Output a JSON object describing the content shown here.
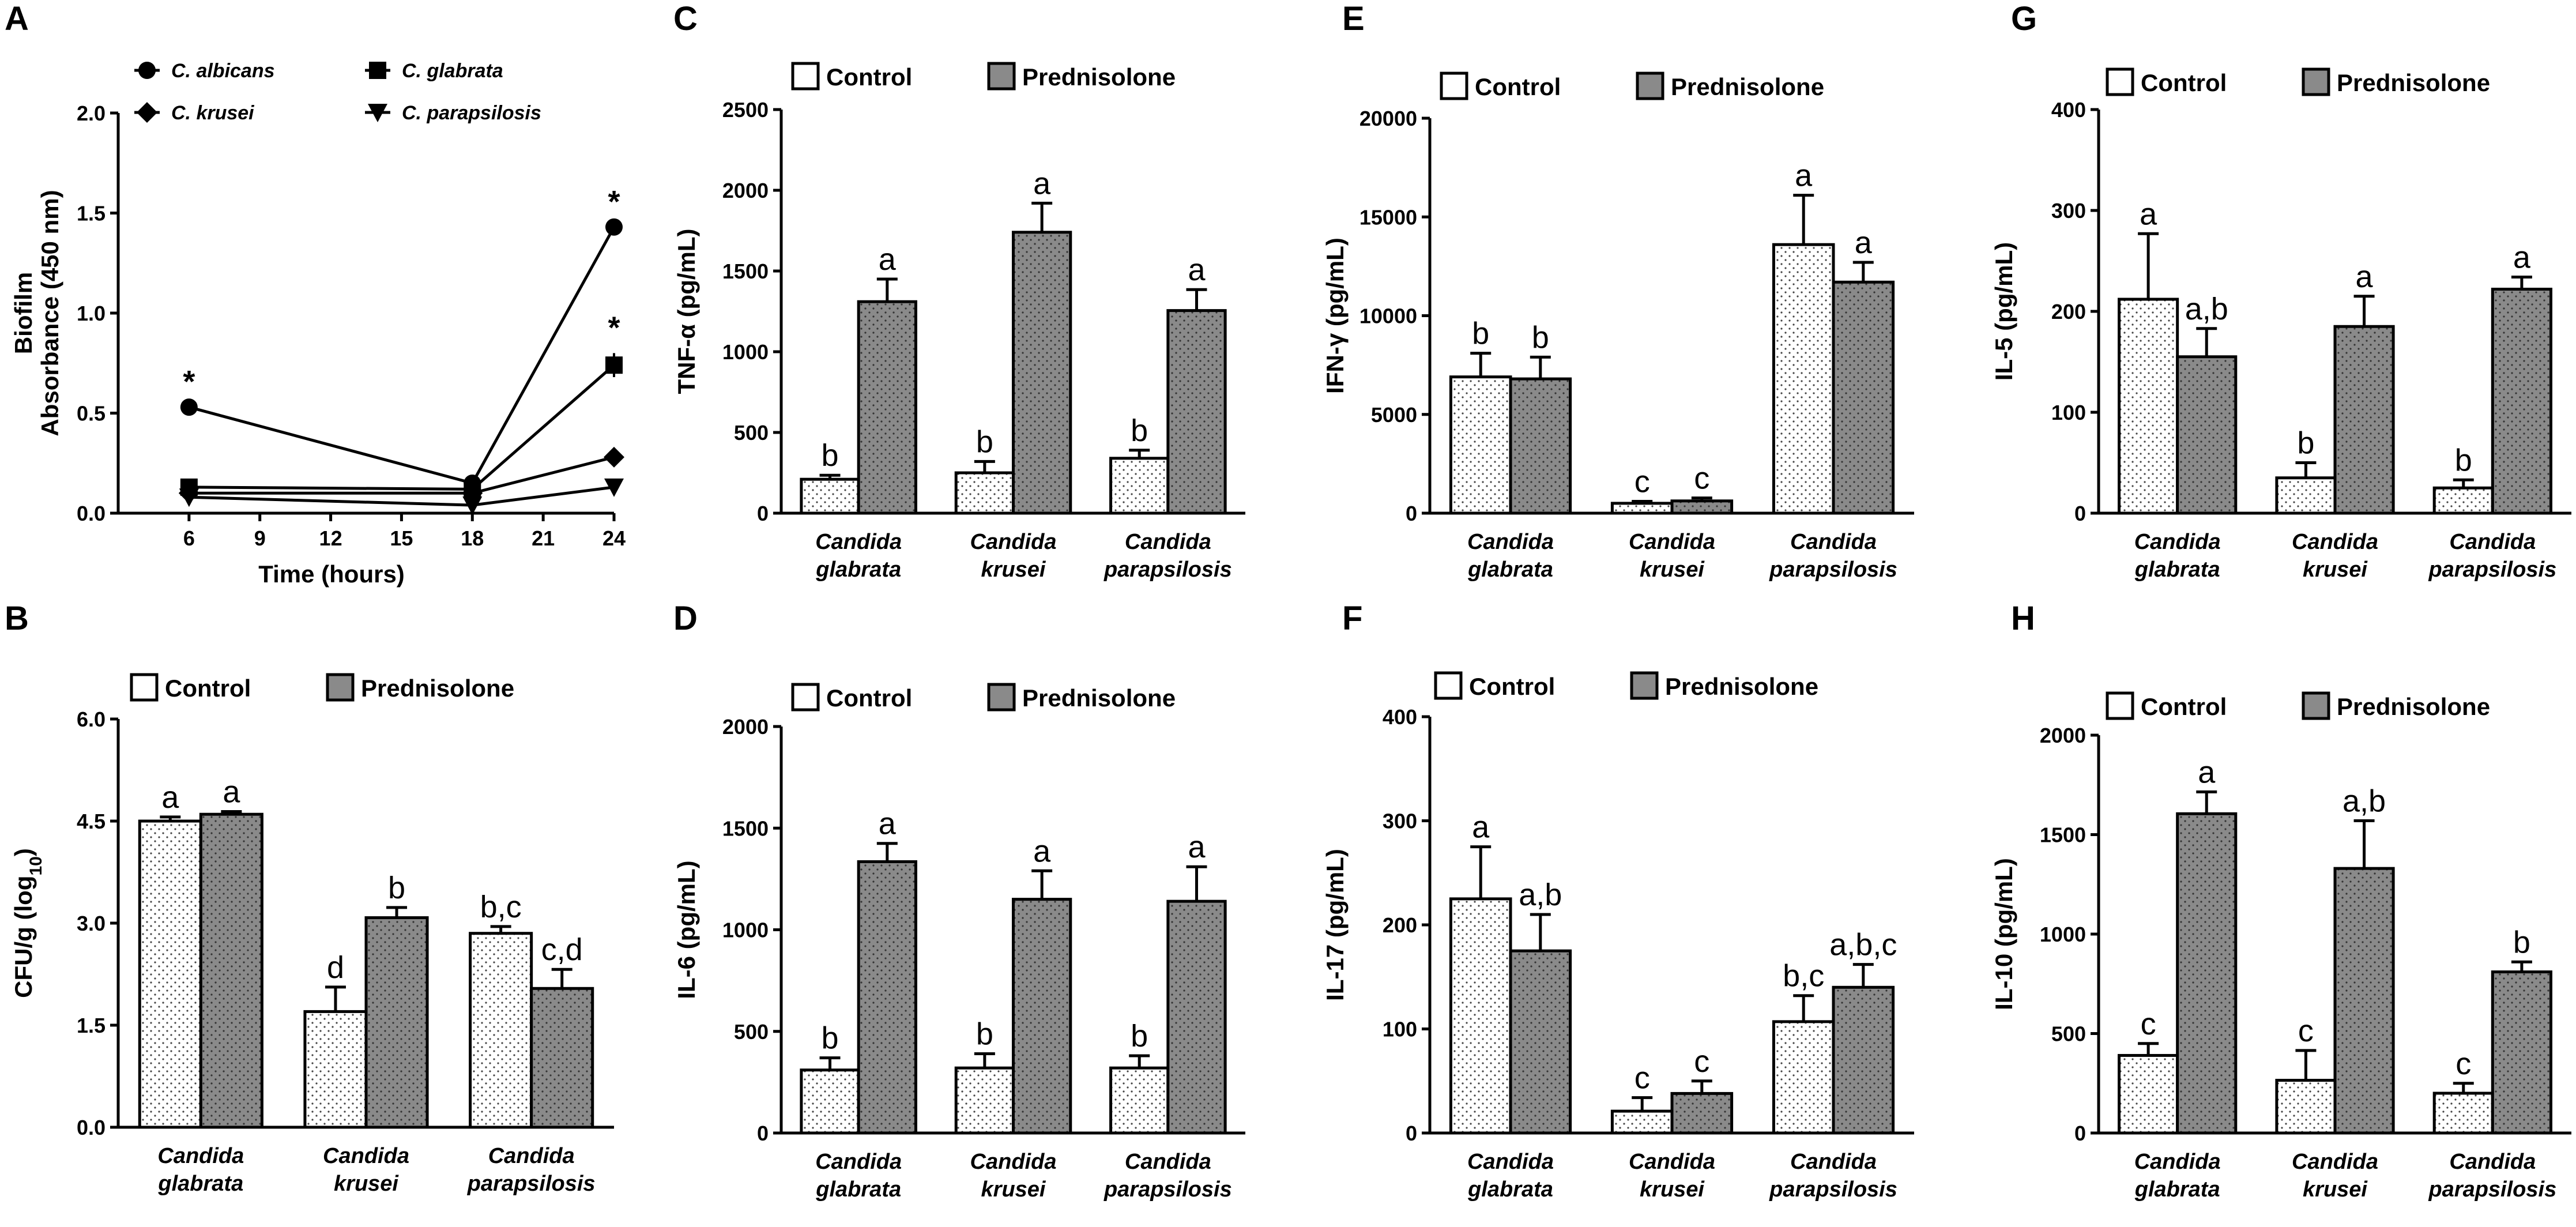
{
  "colors": {
    "control_fill": "#ffffff",
    "prednisolone_fill": "#8a8a8a",
    "ink": "#000000"
  },
  "legend": {
    "control": "Control",
    "prednisolone": "Prednisolone"
  },
  "chart_data": [
    {
      "panel": "A",
      "type": "line",
      "ylabel_line1": "Biofilm",
      "ylabel_line2": "Absorbance (450 nm)",
      "xlabel": "Time (hours)",
      "x_ticks": [
        "6",
        "9",
        "12",
        "15",
        "18",
        "21",
        "24"
      ],
      "x_tick_values": [
        6,
        9,
        12,
        15,
        18,
        21,
        24
      ],
      "xlim": [
        3,
        24
      ],
      "ylim": [
        0,
        2
      ],
      "y_ticks": [
        "0.0",
        "0.5",
        "1.0",
        "1.5",
        "2.0"
      ],
      "y_tick_values": [
        0,
        0.5,
        1.0,
        1.5,
        2.0
      ],
      "x": [
        6,
        18,
        24
      ],
      "series": [
        {
          "name": "C. albicans",
          "marker": "circle",
          "values": [
            0.53,
            0.15,
            1.43
          ],
          "errors": [
            0.01,
            0.02,
            0.02
          ]
        },
        {
          "name": "C. glabrata",
          "marker": "square",
          "values": [
            0.13,
            0.12,
            0.74
          ],
          "errors": [
            0.01,
            0.02,
            0.06
          ]
        },
        {
          "name": "C. krusei",
          "marker": "diamond",
          "values": [
            0.1,
            0.1,
            0.28
          ],
          "errors": [
            0.01,
            0.02,
            0.01
          ]
        },
        {
          "name": "C. parapsilosis",
          "marker": "triangle",
          "values": [
            0.08,
            0.04,
            0.13
          ],
          "errors": [
            0.01,
            0.01,
            0.01
          ]
        }
      ],
      "annotations": [
        {
          "text": "*",
          "x": 6,
          "y": 0.53
        },
        {
          "text": "*",
          "x": 24,
          "y": 1.43
        },
        {
          "text": "*",
          "x": 24,
          "y": 0.8
        }
      ]
    },
    {
      "panel": "B",
      "type": "bar",
      "ylabel": "CFU/g (log",
      "ylabel_sub": "10",
      "ylabel_end": ")",
      "ylim": [
        0,
        6
      ],
      "y_ticks": [
        "0.0",
        "1.5",
        "3.0",
        "4.5",
        "6.0"
      ],
      "y_tick_values": [
        0,
        1.5,
        3.0,
        4.5,
        6.0
      ],
      "categories": [
        [
          "Candida",
          "glabrata"
        ],
        [
          "Candida",
          "krusei"
        ],
        [
          "Candida",
          "parapsilosis"
        ]
      ],
      "series": [
        {
          "name": "Control",
          "values": [
            4.5,
            1.7,
            2.85
          ],
          "errors": [
            0.06,
            0.36,
            0.1
          ],
          "labels": [
            "a",
            "d",
            "b,c"
          ]
        },
        {
          "name": "Prednisolone",
          "values": [
            4.6,
            3.08,
            2.04
          ],
          "errors": [
            0.04,
            0.15,
            0.28
          ],
          "labels": [
            "a",
            "b",
            "c,d"
          ]
        }
      ]
    },
    {
      "panel": "C",
      "type": "bar",
      "ylabel": "TNF-α (pg/mL)",
      "ylim": [
        0,
        2500
      ],
      "y_ticks": [
        "0",
        "500",
        "1000",
        "1500",
        "2000",
        "2500"
      ],
      "y_tick_values": [
        0,
        500,
        1000,
        1500,
        2000,
        2500
      ],
      "categories": [
        [
          "Candida",
          "glabrata"
        ],
        [
          "Candida",
          "krusei"
        ],
        [
          "Candida",
          "parapsilosis"
        ]
      ],
      "series": [
        {
          "name": "Control",
          "values": [
            210,
            250,
            340
          ],
          "errors": [
            25,
            70,
            50
          ],
          "labels": [
            "b",
            "b",
            "b"
          ]
        },
        {
          "name": "Prednisolone",
          "values": [
            1310,
            1740,
            1255
          ],
          "errors": [
            140,
            180,
            130
          ],
          "labels": [
            "a",
            "a",
            "a"
          ]
        }
      ]
    },
    {
      "panel": "D",
      "type": "bar",
      "ylabel": "IL-6 (pg/mL)",
      "ylim": [
        0,
        2000
      ],
      "y_ticks": [
        "0",
        "500",
        "1000",
        "1500",
        "2000"
      ],
      "y_tick_values": [
        0,
        500,
        1000,
        1500,
        2000
      ],
      "categories": [
        [
          "Candida",
          "glabrata"
        ],
        [
          "Candida",
          "krusei"
        ],
        [
          "Candida",
          "parapsilosis"
        ]
      ],
      "series": [
        {
          "name": "Control",
          "values": [
            310,
            320,
            320
          ],
          "errors": [
            60,
            70,
            60
          ],
          "labels": [
            "b",
            "b",
            "b"
          ]
        },
        {
          "name": "Prednisolone",
          "values": [
            1335,
            1150,
            1140
          ],
          "errors": [
            90,
            140,
            170
          ],
          "labels": [
            "a",
            "a",
            "a"
          ]
        }
      ]
    },
    {
      "panel": "E",
      "type": "bar",
      "ylabel": "IFN-γ (pg/mL)",
      "ylim": [
        0,
        20000
      ],
      "y_ticks": [
        "0",
        "5000",
        "10000",
        "15000",
        "20000"
      ],
      "y_tick_values": [
        0,
        5000,
        10000,
        15000,
        20000
      ],
      "categories": [
        [
          "Candida",
          "glabrata"
        ],
        [
          "Candida",
          "krusei"
        ],
        [
          "Candida",
          "parapsilosis"
        ]
      ],
      "series": [
        {
          "name": "Control",
          "values": [
            6900,
            500,
            13600
          ],
          "errors": [
            1200,
            100,
            2500
          ],
          "labels": [
            "b",
            "c",
            "a"
          ]
        },
        {
          "name": "Prednisolone",
          "values": [
            6800,
            620,
            11700
          ],
          "errors": [
            1100,
            150,
            1000
          ],
          "labels": [
            "b",
            "c",
            "a"
          ]
        }
      ]
    },
    {
      "panel": "F",
      "type": "bar",
      "ylabel": "IL-17 (pg/mL)",
      "ylim": [
        0,
        400
      ],
      "y_ticks": [
        "0",
        "100",
        "200",
        "300",
        "400"
      ],
      "y_tick_values": [
        0,
        100,
        200,
        300,
        400
      ],
      "categories": [
        [
          "Candida",
          "glabrata"
        ],
        [
          "Candida",
          "krusei"
        ],
        [
          "Candida",
          "parapsilosis"
        ]
      ],
      "series": [
        {
          "name": "Control",
          "values": [
            225,
            21,
            107
          ],
          "errors": [
            50,
            13,
            25
          ],
          "labels": [
            "a",
            "c",
            "b,c"
          ]
        },
        {
          "name": "Prednisolone",
          "values": [
            175,
            38,
            140
          ],
          "errors": [
            35,
            12,
            22
          ],
          "labels": [
            "a,b",
            "c",
            "a,b,c"
          ]
        }
      ]
    },
    {
      "panel": "G",
      "type": "bar",
      "ylabel": "IL-5 (pg/mL)",
      "ylim": [
        0,
        400
      ],
      "y_ticks": [
        "0",
        "100",
        "200",
        "300",
        "400"
      ],
      "y_tick_values": [
        0,
        100,
        200,
        300,
        400
      ],
      "categories": [
        [
          "Candida",
          "glabrata"
        ],
        [
          "Candida",
          "krusei"
        ],
        [
          "Candida",
          "parapsilosis"
        ]
      ],
      "series": [
        {
          "name": "Control",
          "values": [
            212,
            35,
            25
          ],
          "errors": [
            65,
            15,
            8
          ],
          "labels": [
            "a",
            "b",
            "b"
          ]
        },
        {
          "name": "Prednisolone",
          "values": [
            155,
            185,
            222
          ],
          "errors": [
            28,
            30,
            12
          ],
          "labels": [
            "a,b",
            "a",
            "a"
          ]
        }
      ]
    },
    {
      "panel": "H",
      "type": "bar",
      "ylabel": "IL-10 (pg/mL)",
      "ylim": [
        0,
        2000
      ],
      "y_ticks": [
        "0",
        "500",
        "1000",
        "1500",
        "2000"
      ],
      "y_tick_values": [
        0,
        500,
        1000,
        1500,
        2000
      ],
      "categories": [
        [
          "Candida",
          "glabrata"
        ],
        [
          "Candida",
          "krusei"
        ],
        [
          "Candida",
          "parapsilosis"
        ]
      ],
      "series": [
        {
          "name": "Control",
          "values": [
            390,
            265,
            200
          ],
          "errors": [
            60,
            150,
            50
          ],
          "labels": [
            "c",
            "c",
            "c"
          ]
        },
        {
          "name": "Prednisolone",
          "values": [
            1605,
            1330,
            810
          ],
          "errors": [
            110,
            240,
            50
          ],
          "labels": [
            "a",
            "a,b",
            "b"
          ]
        }
      ]
    }
  ]
}
